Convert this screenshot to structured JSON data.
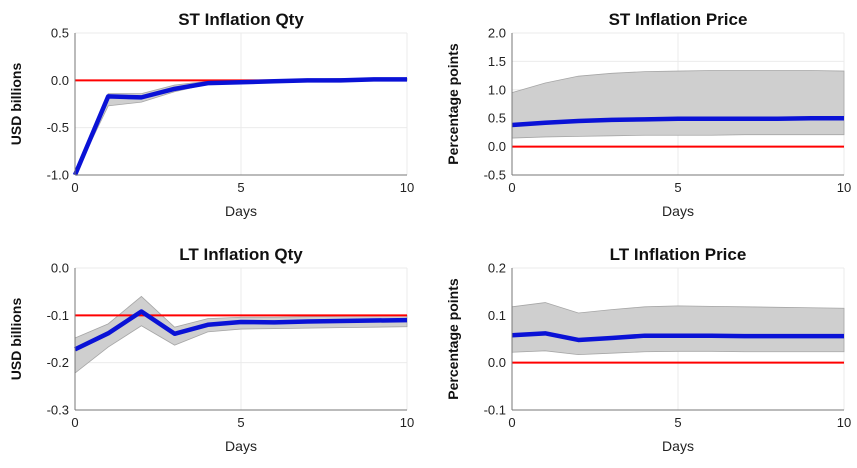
{
  "colors": {
    "response": "#0a12d6",
    "band": "#cfcfcf",
    "band_edge": "#a6a6a6",
    "baseline": "#ff0000",
    "grid": "#ebebeb",
    "axis": "#777777"
  },
  "chart_data": [
    {
      "type": "line",
      "title": "ST Inflation Qty",
      "xlabel": "Days",
      "ylabel": "USD billions",
      "xlim": [
        0,
        10
      ],
      "ylim": [
        -1.0,
        0.5
      ],
      "xticks": [
        0,
        5,
        10
      ],
      "xtick_labels": [
        "0",
        "5",
        "10"
      ],
      "yticks": [
        -1.0,
        -0.5,
        0.0,
        0.5
      ],
      "ytick_labels": [
        "-1.0",
        "-0.5",
        "0.0",
        "0.5"
      ],
      "grid": true,
      "baseline": 0.0,
      "x": [
        0,
        1,
        2,
        3,
        4,
        5,
        6,
        7,
        8,
        9,
        10
      ],
      "series": [
        {
          "values": [
            -1.0,
            -0.17,
            -0.18,
            -0.09,
            -0.03,
            -0.02,
            -0.01,
            0.0,
            0.0,
            0.01,
            0.01
          ]
        }
      ],
      "band": {
        "upper": [
          -0.98,
          -0.14,
          -0.14,
          -0.05,
          -0.01,
          -0.01,
          0.0,
          0.01,
          0.02,
          0.02,
          0.02
        ],
        "lower": [
          -1.0,
          -0.27,
          -0.23,
          -0.12,
          -0.04,
          -0.03,
          -0.02,
          -0.01,
          -0.01,
          0.0,
          0.0
        ]
      }
    },
    {
      "type": "line",
      "title": "ST Inflation Price",
      "xlabel": "Days",
      "ylabel": "Percentage points",
      "xlim": [
        0,
        10
      ],
      "ylim": [
        -0.5,
        2.0
      ],
      "xticks": [
        0,
        5,
        10
      ],
      "xtick_labels": [
        "0",
        "5",
        "10"
      ],
      "yticks": [
        -0.5,
        0.0,
        0.5,
        1.0,
        1.5,
        2.0
      ],
      "ytick_labels": [
        "-0.5",
        "0.0",
        "0.5",
        "1.0",
        "1.5",
        "2.0"
      ],
      "grid": true,
      "baseline": 0.0,
      "x": [
        0,
        1,
        2,
        3,
        4,
        5,
        6,
        7,
        8,
        9,
        10
      ],
      "series": [
        {
          "values": [
            0.38,
            0.42,
            0.45,
            0.47,
            0.48,
            0.49,
            0.49,
            0.49,
            0.49,
            0.5,
            0.5
          ]
        }
      ],
      "band": {
        "upper": [
          0.95,
          1.12,
          1.24,
          1.29,
          1.32,
          1.33,
          1.34,
          1.34,
          1.34,
          1.34,
          1.33
        ],
        "lower": [
          0.15,
          0.17,
          0.18,
          0.19,
          0.2,
          0.2,
          0.2,
          0.21,
          0.21,
          0.21,
          0.21
        ]
      }
    },
    {
      "type": "line",
      "title": "LT Inflation Qty",
      "xlabel": "Days",
      "ylabel": "USD billions",
      "xlim": [
        0,
        10
      ],
      "ylim": [
        -0.3,
        0.0
      ],
      "xticks": [
        0,
        5,
        10
      ],
      "xtick_labels": [
        "0",
        "5",
        "10"
      ],
      "yticks": [
        -0.3,
        -0.2,
        -0.1,
        0.0
      ],
      "ytick_labels": [
        "-0.3",
        "-0.2",
        "-0.1",
        "0.0"
      ],
      "grid": true,
      "baseline": -0.1,
      "x": [
        0,
        1,
        2,
        3,
        4,
        5,
        6,
        7,
        8,
        9,
        10
      ],
      "series": [
        {
          "values": [
            -0.172,
            -0.138,
            -0.092,
            -0.139,
            -0.12,
            -0.114,
            -0.115,
            -0.113,
            -0.112,
            -0.111,
            -0.11
          ]
        }
      ],
      "band": {
        "upper": [
          -0.148,
          -0.118,
          -0.06,
          -0.125,
          -0.107,
          -0.104,
          -0.104,
          -0.103,
          -0.102,
          -0.101,
          -0.1
        ],
        "lower": [
          -0.222,
          -0.167,
          -0.122,
          -0.163,
          -0.135,
          -0.129,
          -0.128,
          -0.127,
          -0.126,
          -0.125,
          -0.124
        ]
      }
    },
    {
      "type": "line",
      "title": "LT Inflation Price",
      "xlabel": "Days",
      "ylabel": "Percentage points",
      "xlim": [
        0,
        10
      ],
      "ylim": [
        -0.1,
        0.2
      ],
      "xticks": [
        0,
        5,
        10
      ],
      "xtick_labels": [
        "0",
        "5",
        "10"
      ],
      "yticks": [
        -0.1,
        0.0,
        0.1,
        0.2
      ],
      "ytick_labels": [
        "-0.1",
        "0.0",
        "0.1",
        "0.2"
      ],
      "grid": true,
      "baseline": 0.0,
      "x": [
        0,
        1,
        2,
        3,
        4,
        5,
        6,
        7,
        8,
        9,
        10
      ],
      "series": [
        {
          "values": [
            0.058,
            0.062,
            0.048,
            0.052,
            0.057,
            0.057,
            0.057,
            0.056,
            0.056,
            0.056,
            0.056
          ]
        }
      ],
      "band": {
        "upper": [
          0.118,
          0.127,
          0.105,
          0.112,
          0.118,
          0.12,
          0.119,
          0.118,
          0.117,
          0.116,
          0.115
        ],
        "lower": [
          0.022,
          0.025,
          0.017,
          0.02,
          0.023,
          0.024,
          0.024,
          0.023,
          0.023,
          0.023,
          0.023
        ]
      }
    }
  ]
}
